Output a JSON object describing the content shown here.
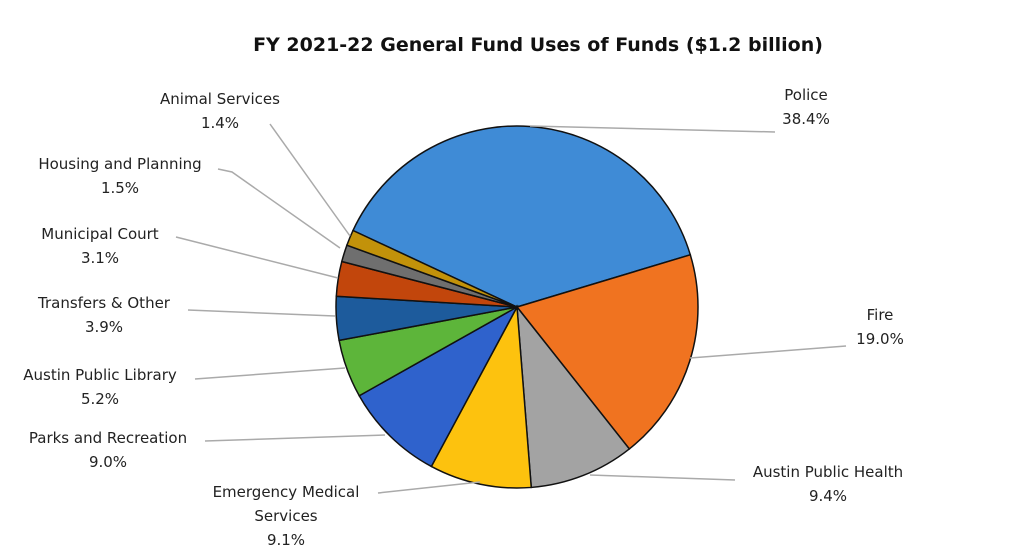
{
  "chart_data": {
    "type": "pie",
    "title": "FY 2021-22 General Fund Uses of Funds ($1.2 billion)",
    "unit": "%",
    "slices": [
      {
        "label": "Police",
        "value": 38.4,
        "display": "38.4%",
        "color": "#3f8bd6"
      },
      {
        "label": "Fire",
        "value": 19.0,
        "display": "19.0%",
        "color": "#f07320"
      },
      {
        "label": "Austin Public Health",
        "value": 9.4,
        "display": "9.4%",
        "color": "#a3a3a3"
      },
      {
        "label": "Emergency Medical Services",
        "value": 9.1,
        "display": "9.1%",
        "color": "#fdc20e"
      },
      {
        "label": "Parks and Recreation",
        "value": 9.0,
        "display": "9.0%",
        "color": "#2f62cc"
      },
      {
        "label": "Austin Public Library",
        "value": 5.2,
        "display": "5.2%",
        "color": "#5db53a"
      },
      {
        "label": "Transfers & Other",
        "value": 3.9,
        "display": "3.9%",
        "color": "#1d5b9c"
      },
      {
        "label": "Municipal Court",
        "value": 3.1,
        "display": "3.1%",
        "color": "#c2460c"
      },
      {
        "label": "Housing and Planning",
        "value": 1.5,
        "display": "1.5%",
        "color": "#6f6f6f"
      },
      {
        "label": "Animal Services",
        "value": 1.4,
        "display": "1.4%",
        "color": "#c2920a"
      }
    ]
  }
}
